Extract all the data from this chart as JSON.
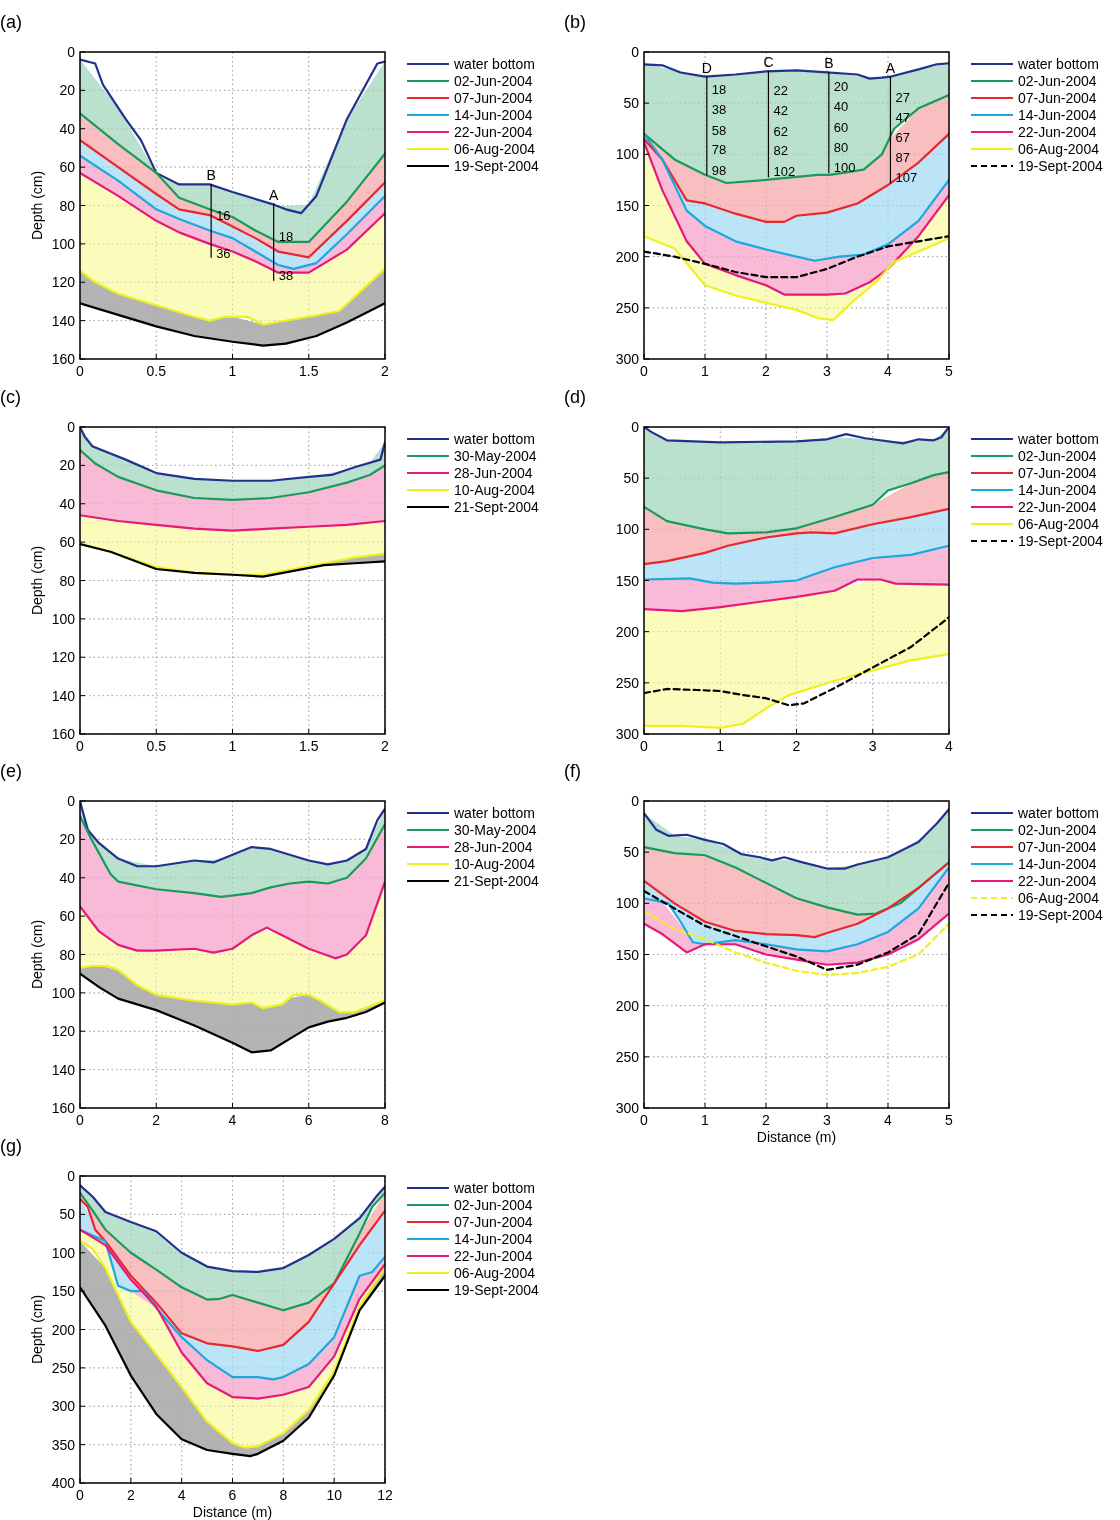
{
  "chart_data": [
    {
      "type": "line",
      "title": "(a)",
      "ylabel": "Depth (cm)",
      "xlim": [
        0,
        2
      ],
      "ylim": [
        160,
        0
      ],
      "xticks": [
        0,
        0.5,
        1,
        1.5,
        2
      ],
      "yticks": [
        0,
        20,
        40,
        60,
        80,
        100,
        120,
        140,
        160
      ],
      "grid": true,
      "legend": "right",
      "series": [
        {
          "name": "water bottom",
          "color": "#23308f",
          "type": "line",
          "x": [
            0,
            0.1,
            0.15,
            0.3,
            0.4,
            0.5,
            0.65,
            0.85,
            1,
            1.25,
            1.35,
            1.45,
            1.55,
            1.75,
            1.95,
            2
          ],
          "values": [
            4,
            6,
            17,
            35,
            46,
            63,
            69,
            69,
            73,
            79,
            82,
            84,
            75,
            35,
            6,
            5
          ]
        },
        {
          "name": "02-Jun-2004",
          "color": "#1a9a5a",
          "type": "area",
          "x": [
            0,
            0.25,
            0.5,
            0.65,
            0.85,
            1,
            1.15,
            1.3,
            1.5,
            1.75,
            2
          ],
          "values": [
            32,
            48,
            63,
            76,
            82,
            86,
            93,
            99,
            99,
            78,
            53
          ]
        },
        {
          "name": "07-Jun-2004",
          "color": "#e8262d",
          "type": "area",
          "x": [
            0,
            0.25,
            0.5,
            0.65,
            0.85,
            1,
            1.15,
            1.3,
            1.5,
            1.75,
            2
          ],
          "values": [
            46,
            60,
            74,
            82,
            85,
            91,
            97,
            104,
            107,
            88,
            68
          ]
        },
        {
          "name": "14-Jun-2004",
          "color": "#1ca7e0",
          "type": "area",
          "x": [
            0,
            0.25,
            0.5,
            0.65,
            0.85,
            1,
            1.15,
            1.3,
            1.4,
            1.55,
            1.75,
            2
          ],
          "values": [
            54,
            67,
            82,
            87,
            93,
            97,
            104,
            111,
            113,
            110,
            95,
            75
          ]
        },
        {
          "name": "22-Jun-2004",
          "color": "#e6197a",
          "type": "area",
          "x": [
            0,
            0.25,
            0.5,
            0.65,
            0.85,
            1,
            1.15,
            1.3,
            1.5,
            1.75,
            2
          ],
          "values": [
            63,
            75,
            88,
            94,
            100,
            104,
            109,
            115,
            115,
            103,
            84
          ]
        },
        {
          "name": "06-Aug-2004",
          "color": "#f0f020",
          "type": "area",
          "x": [
            0,
            0.1,
            0.25,
            0.5,
            0.75,
            0.85,
            0.95,
            1.1,
            1.2,
            1.5,
            1.7,
            1.85,
            2
          ],
          "values": [
            114,
            120,
            126,
            132,
            138,
            140,
            138,
            138,
            142,
            138,
            135,
            124,
            113
          ]
        },
        {
          "name": "19-Sept-2004",
          "color": "#000000",
          "type": "area",
          "x": [
            0,
            0.25,
            0.5,
            0.75,
            1,
            1.2,
            1.35,
            1.55,
            1.75,
            2
          ],
          "values": [
            131,
            137,
            143,
            148,
            151,
            153,
            152,
            148,
            141,
            131
          ]
        },
        {
          "color": "#000000",
          "type": "line",
          "x": [
            0.86,
            0.86
          ],
          "values": [
            69,
            107
          ]
        },
        {
          "color": "#000000",
          "type": "line",
          "x": [
            1.27,
            1.27
          ],
          "values": [
            79,
            119
          ]
        }
      ],
      "annotations": [
        {
          "text": "B",
          "x": 0.86,
          "y": 69
        },
        {
          "text": "A",
          "x": 1.27,
          "y": 79
        },
        {
          "text": "16",
          "x": 0.86,
          "y": 85
        },
        {
          "text": "36",
          "x": 0.86,
          "y": 105
        },
        {
          "text": "18",
          "x": 1.27,
          "y": 96
        },
        {
          "text": "38",
          "x": 1.27,
          "y": 116
        }
      ]
    },
    {
      "type": "line",
      "title": "(b)",
      "xlim": [
        0,
        5
      ],
      "ylim": [
        300,
        0
      ],
      "xticks": [
        0,
        1,
        2,
        3,
        4,
        5
      ],
      "yticks": [
        0,
        50,
        100,
        150,
        200,
        250,
        300
      ],
      "grid": true,
      "legend": "right",
      "series": [
        {
          "name": "water bottom",
          "color": "#23308f",
          "type": "line",
          "x": [
            0,
            0.3,
            0.6,
            1,
            1.5,
            2,
            2.5,
            3,
            3.5,
            3.7,
            3.9,
            4.05,
            4.5,
            4.8,
            5
          ],
          "values": [
            12,
            13,
            20,
            24,
            22,
            19,
            18,
            20,
            22,
            26,
            25,
            24,
            17,
            12,
            11
          ]
        },
        {
          "name": "02-Jun-2004",
          "color": "#1a9a5a",
          "type": "area",
          "x": [
            0,
            0.5,
            1,
            1.35,
            2,
            2.5,
            2.85,
            3.05,
            3.6,
            3.9,
            4.1,
            4.5,
            5
          ],
          "values": [
            80,
            105,
            120,
            128,
            125,
            122,
            120,
            120,
            115,
            100,
            75,
            55,
            42
          ]
        },
        {
          "name": "07-Jun-2004",
          "color": "#e8262d",
          "type": "area",
          "x": [
            0,
            0.3,
            0.7,
            1,
            1.5,
            2,
            2.3,
            2.5,
            3,
            3.5,
            4,
            4.5,
            5
          ],
          "values": [
            85,
            105,
            145,
            148,
            158,
            166,
            166,
            160,
            157,
            148,
            130,
            108,
            80
          ]
        },
        {
          "name": "14-Jun-2004",
          "color": "#1ca7e0",
          "type": "area",
          "x": [
            0,
            0.3,
            0.7,
            1,
            1.5,
            2,
            2.5,
            2.8,
            3.2,
            3.6,
            4,
            4.5,
            5
          ],
          "values": [
            80,
            105,
            155,
            170,
            185,
            193,
            200,
            204,
            200,
            198,
            188,
            165,
            125
          ]
        },
        {
          "name": "22-Jun-2004",
          "color": "#e6197a",
          "type": "area",
          "x": [
            0,
            0.3,
            0.7,
            1,
            1.5,
            2,
            2.3,
            3,
            3.3,
            3.7,
            4,
            4.5,
            5
          ],
          "values": [
            88,
            135,
            185,
            207,
            218,
            228,
            237,
            237,
            236,
            225,
            212,
            180,
            140
          ]
        },
        {
          "name": "06-Aug-2004",
          "color": "#f0f020",
          "type": "area",
          "x": [
            0,
            0.5,
            1,
            1.5,
            2,
            2.5,
            2.85,
            3.1,
            3.4,
            3.8,
            4.1,
            4.5,
            5
          ],
          "values": [
            180,
            192,
            228,
            238,
            245,
            252,
            260,
            262,
            245,
            225,
            205,
            195,
            182
          ]
        },
        {
          "name": "19-Sept-2004",
          "color": "#000000",
          "type": "line",
          "line_style": "dashed",
          "x": [
            0,
            0.5,
            1,
            1.5,
            2,
            2.5,
            3,
            3.5,
            4,
            4.5,
            5
          ],
          "values": [
            195,
            200,
            207,
            215,
            220,
            220,
            212,
            200,
            190,
            185,
            180
          ]
        },
        {
          "color": "#000000",
          "type": "line",
          "x": [
            1.03,
            1.03
          ],
          "values": [
            24,
            120
          ]
        },
        {
          "color": "#000000",
          "type": "line",
          "x": [
            2.04,
            2.04
          ],
          "values": [
            19,
            122
          ]
        },
        {
          "color": "#000000",
          "type": "line",
          "x": [
            3.03,
            3.03
          ],
          "values": [
            20,
            118
          ]
        },
        {
          "color": "#000000",
          "type": "line",
          "x": [
            4.04,
            4.04
          ],
          "values": [
            24,
            128
          ]
        }
      ],
      "annotations": [
        {
          "text": "D",
          "x": 1.03,
          "y": 24
        },
        {
          "text": "C",
          "x": 2.04,
          "y": 19
        },
        {
          "text": "B",
          "x": 3.03,
          "y": 20
        },
        {
          "text": "A",
          "x": 4.04,
          "y": 24
        },
        {
          "text": "18",
          "x": 1.03,
          "y": 36
        },
        {
          "text": "38",
          "x": 1.03,
          "y": 56
        },
        {
          "text": "58",
          "x": 1.03,
          "y": 76
        },
        {
          "text": "78",
          "x": 1.03,
          "y": 95
        },
        {
          "text": "98",
          "x": 1.03,
          "y": 115
        },
        {
          "text": "22",
          "x": 2.04,
          "y": 37
        },
        {
          "text": "42",
          "x": 2.04,
          "y": 57
        },
        {
          "text": "62",
          "x": 2.04,
          "y": 77
        },
        {
          "text": "82",
          "x": 2.04,
          "y": 96
        },
        {
          "text": "102",
          "x": 2.04,
          "y": 116
        },
        {
          "text": "20",
          "x": 3.03,
          "y": 33
        },
        {
          "text": "40",
          "x": 3.03,
          "y": 53
        },
        {
          "text": "60",
          "x": 3.03,
          "y": 73
        },
        {
          "text": "80",
          "x": 3.03,
          "y": 93
        },
        {
          "text": "100",
          "x": 3.03,
          "y": 112
        },
        {
          "text": "27",
          "x": 4.04,
          "y": 44
        },
        {
          "text": "47",
          "x": 4.04,
          "y": 64
        },
        {
          "text": "67",
          "x": 4.04,
          "y": 83
        },
        {
          "text": "87",
          "x": 4.04,
          "y": 103
        },
        {
          "text": "107",
          "x": 4.04,
          "y": 122
        }
      ]
    },
    {
      "type": "line",
      "title": "(c)",
      "ylabel": "Depth (cm)",
      "xlim": [
        0,
        2
      ],
      "ylim": [
        160,
        0
      ],
      "xticks": [
        0,
        0.5,
        1,
        1.5,
        2
      ],
      "yticks": [
        0,
        20,
        40,
        60,
        80,
        100,
        120,
        140,
        160
      ],
      "grid": true,
      "legend": "right",
      "series": [
        {
          "name": "water bottom",
          "color": "#23308f",
          "type": "line",
          "x": [
            0,
            0.03,
            0.08,
            0.3,
            0.5,
            0.75,
            1,
            1.25,
            1.5,
            1.65,
            1.8,
            1.97,
            2
          ],
          "values": [
            0,
            5,
            10,
            17,
            24,
            27,
            28,
            28,
            26,
            25,
            21,
            17,
            8
          ]
        },
        {
          "name": "30-May-2004",
          "color": "#1a9a5a",
          "type": "area",
          "x": [
            0,
            0.1,
            0.25,
            0.5,
            0.75,
            1,
            1.25,
            1.5,
            1.75,
            1.9,
            2
          ],
          "values": [
            12,
            19,
            26,
            33,
            37,
            38,
            37,
            34,
            29,
            25,
            20
          ]
        },
        {
          "name": "28-Jun-2004",
          "color": "#e6197a",
          "type": "area",
          "x": [
            0,
            0.25,
            0.5,
            0.75,
            1,
            1.25,
            1.5,
            1.75,
            2
          ],
          "values": [
            46,
            49,
            51,
            53,
            54,
            53,
            52,
            51,
            49
          ]
        },
        {
          "name": "10-Aug-2004",
          "color": "#f0f020",
          "type": "area",
          "x": [
            0,
            0.2,
            0.5,
            0.75,
            1,
            1.2,
            1.4,
            1.6,
            1.8,
            2
          ],
          "values": [
            61,
            65,
            73,
            76,
            77,
            77,
            74,
            71,
            68,
            66
          ]
        },
        {
          "name": "21-Sept-2004",
          "color": "#000000",
          "type": "area",
          "x": [
            0,
            0.2,
            0.5,
            0.75,
            1,
            1.2,
            1.4,
            1.6,
            1.8,
            2
          ],
          "values": [
            61,
            65,
            74,
            76,
            77,
            78,
            75,
            72,
            71,
            70
          ]
        }
      ]
    },
    {
      "type": "line",
      "title": "(d)",
      "xlim": [
        0,
        4
      ],
      "ylim": [
        300,
        0
      ],
      "xticks": [
        0,
        1,
        2,
        3,
        4
      ],
      "yticks": [
        0,
        50,
        100,
        150,
        200,
        250,
        300
      ],
      "grid": true,
      "legend": "right",
      "series": [
        {
          "name": "water bottom",
          "color": "#23308f",
          "type": "line",
          "x": [
            0,
            0.1,
            0.3,
            1,
            2,
            2.4,
            2.65,
            2.9,
            3.4,
            3.6,
            3.8,
            3.9,
            4
          ],
          "values": [
            0,
            5,
            13,
            15,
            14,
            12,
            7,
            11,
            16,
            12,
            13,
            10,
            0
          ]
        },
        {
          "name": "02-Jun-2004",
          "color": "#1a9a5a",
          "type": "area",
          "x": [
            0,
            0.3,
            0.8,
            1.1,
            1.6,
            2,
            2.5,
            3,
            3.2,
            3.5,
            3.8,
            4
          ],
          "values": [
            78,
            92,
            100,
            104,
            103,
            99,
            88,
            76,
            62,
            55,
            47,
            44
          ]
        },
        {
          "name": "07-Jun-2004",
          "color": "#e8262d",
          "type": "area",
          "x": [
            0,
            0.3,
            0.8,
            1.1,
            1.6,
            2,
            2.2,
            2.5,
            3,
            3.5,
            4
          ],
          "values": [
            134,
            131,
            123,
            116,
            108,
            104,
            103,
            104,
            95,
            88,
            80
          ]
        },
        {
          "name": "14-Jun-2004",
          "color": "#1ca7e0",
          "type": "area",
          "x": [
            0,
            0.6,
            0.9,
            1.2,
            1.6,
            2,
            2.5,
            3,
            3.5,
            4
          ],
          "values": [
            149,
            148,
            152,
            153,
            152,
            150,
            137,
            128,
            125,
            116
          ]
        },
        {
          "name": "22-Jun-2004",
          "color": "#e6197a",
          "type": "area",
          "x": [
            0,
            0.5,
            1,
            1.5,
            2,
            2.5,
            2.8,
            3.1,
            3.3,
            4
          ],
          "values": [
            178,
            180,
            176,
            171,
            166,
            160,
            149,
            149,
            153,
            154
          ]
        },
        {
          "name": "06-Aug-2004",
          "color": "#f0f020",
          "type": "area",
          "x": [
            0,
            0.5,
            1,
            1.3,
            1.6,
            1.9,
            2.5,
            3,
            3.5,
            4
          ],
          "values": [
            292,
            292,
            294,
            290,
            275,
            262,
            248,
            238,
            228,
            222
          ]
        },
        {
          "name": "19-Sept-2004",
          "color": "#000000",
          "type": "line",
          "line_style": "dashed",
          "x": [
            0,
            0.3,
            0.7,
            1,
            1.3,
            1.6,
            1.9,
            2.1,
            2.5,
            3,
            3.5,
            4
          ],
          "values": [
            260,
            256,
            257,
            258,
            262,
            265,
            272,
            270,
            255,
            235,
            215,
            186
          ]
        }
      ]
    },
    {
      "type": "line",
      "title": "(e)",
      "ylabel": "Depth (cm)",
      "xlim": [
        0,
        8
      ],
      "ylim": [
        160,
        0
      ],
      "xticks": [
        0,
        2,
        4,
        6,
        8
      ],
      "yticks": [
        0,
        20,
        40,
        60,
        80,
        100,
        120,
        140,
        160
      ],
      "grid": true,
      "legend": "right",
      "series": [
        {
          "name": "water bottom",
          "color": "#23308f",
          "type": "line",
          "x": [
            0,
            0.2,
            0.5,
            1,
            1.5,
            2,
            3,
            3.5,
            4,
            4.5,
            5,
            5.5,
            6,
            6.5,
            7,
            7.5,
            7.8,
            8
          ],
          "values": [
            0,
            15,
            22,
            30,
            34,
            34,
            31,
            32,
            28,
            24,
            25,
            28,
            31,
            33,
            31,
            25,
            10,
            4
          ]
        },
        {
          "name": "30-May-2004",
          "color": "#1a9a5a",
          "type": "area",
          "x": [
            0,
            0.3,
            0.8,
            1,
            2,
            3,
            3.7,
            4.5,
            5,
            5.5,
            6,
            6.5,
            7,
            7.5,
            8
          ],
          "values": [
            8,
            20,
            38,
            42,
            46,
            48,
            50,
            48,
            45,
            43,
            42,
            43,
            40,
            30,
            12
          ]
        },
        {
          "name": "28-Jun-2004",
          "color": "#e6197a",
          "type": "area",
          "x": [
            0,
            0.5,
            1,
            1.5,
            2,
            3,
            3.5,
            4,
            4.5,
            4.9,
            5.3,
            6,
            6.7,
            7,
            7.5,
            8
          ],
          "values": [
            55,
            68,
            75,
            78,
            78,
            77,
            79,
            77,
            70,
            66,
            70,
            77,
            82,
            80,
            70,
            42
          ]
        },
        {
          "name": "10-Aug-2004",
          "color": "#f0f020",
          "type": "area",
          "x": [
            0,
            0.3,
            0.7,
            1,
            1.5,
            2,
            3,
            4,
            4.5,
            4.8,
            5.3,
            5.6,
            6,
            6.3,
            6.8,
            7.2,
            7.6,
            8
          ],
          "values": [
            87,
            86,
            86,
            88,
            96,
            101,
            104,
            106,
            105,
            108,
            106,
            101,
            101,
            104,
            110,
            110,
            107,
            104
          ]
        },
        {
          "name": "21-Sept-2004",
          "color": "#000000",
          "type": "area",
          "x": [
            0,
            0.5,
            1,
            2,
            3,
            4,
            4.5,
            5,
            5.5,
            6,
            6.5,
            7,
            7.5,
            8
          ],
          "values": [
            90,
            97,
            103,
            109,
            117,
            126,
            131,
            130,
            124,
            118,
            115,
            113,
            110,
            105
          ]
        }
      ]
    },
    {
      "type": "line",
      "title": "(f)",
      "xlabel": "Distance (m)",
      "xlim": [
        0,
        5
      ],
      "ylim": [
        300,
        0
      ],
      "xticks": [
        0,
        1,
        2,
        3,
        4,
        5
      ],
      "yticks": [
        0,
        50,
        100,
        150,
        200,
        250,
        300
      ],
      "grid": true,
      "legend": "right",
      "series": [
        {
          "name": "water bottom",
          "color": "#23308f",
          "type": "line",
          "x": [
            0,
            0.2,
            0.4,
            0.7,
            1,
            1.3,
            1.6,
            1.9,
            2.1,
            2.3,
            2.6,
            3,
            3.3,
            3.5,
            4,
            4.5,
            4.8,
            5
          ],
          "values": [
            12,
            28,
            34,
            33,
            38,
            42,
            52,
            55,
            58,
            55,
            60,
            66,
            66,
            62,
            55,
            40,
            22,
            8
          ]
        },
        {
          "name": "02-Jun-2004",
          "color": "#1a9a5a",
          "type": "area",
          "x": [
            0,
            0.5,
            1,
            1.5,
            2,
            2.5,
            3,
            3.5,
            3.8,
            4.2,
            4.6,
            5
          ],
          "values": [
            45,
            51,
            53,
            65,
            80,
            95,
            104,
            111,
            110,
            100,
            80,
            60
          ]
        },
        {
          "name": "07-Jun-2004",
          "color": "#e8262d",
          "type": "area",
          "x": [
            0,
            0.5,
            1,
            1.5,
            2,
            2.5,
            2.8,
            3,
            3.5,
            4,
            4.5,
            5
          ],
          "values": [
            78,
            100,
            118,
            127,
            130,
            131,
            133,
            129,
            120,
            105,
            85,
            60
          ]
        },
        {
          "name": "14-Jun-2004",
          "color": "#1ca7e0",
          "type": "area",
          "x": [
            0,
            0.4,
            0.6,
            0.8,
            1,
            1.5,
            2,
            2.5,
            3,
            3.5,
            4,
            4.5,
            5
          ],
          "values": [
            95,
            100,
            118,
            138,
            140,
            136,
            140,
            145,
            147,
            140,
            128,
            105,
            65
          ]
        },
        {
          "name": "22-Jun-2004",
          "color": "#e6197a",
          "type": "area",
          "x": [
            0,
            0.3,
            0.7,
            1,
            1.5,
            2,
            2.5,
            3,
            3.5,
            4,
            4.5,
            5
          ],
          "values": [
            120,
            130,
            148,
            140,
            140,
            150,
            155,
            160,
            158,
            150,
            135,
            110
          ]
        },
        {
          "name": "06-Aug-2004",
          "color": "#f0f020",
          "type": "line",
          "line_style": "dashed",
          "x": [
            0,
            0.5,
            1,
            1.5,
            2,
            2.5,
            3,
            3.5,
            4,
            4.5,
            5
          ],
          "values": [
            108,
            125,
            135,
            148,
            158,
            166,
            170,
            168,
            162,
            150,
            120
          ]
        },
        {
          "name": "19-Sept-2004",
          "color": "#000000",
          "type": "line",
          "line_style": "dashed",
          "x": [
            0,
            0.5,
            1,
            1.5,
            2,
            2.5,
            3,
            3.5,
            4,
            4.5,
            5
          ],
          "values": [
            88,
            105,
            122,
            132,
            142,
            152,
            165,
            160,
            148,
            130,
            80
          ]
        }
      ]
    },
    {
      "type": "line",
      "title": "(g)",
      "xlabel": "Distance (m)",
      "ylabel": "Depth (cm)",
      "xlim": [
        0,
        12
      ],
      "ylim": [
        400,
        0
      ],
      "xticks": [
        0,
        2,
        4,
        6,
        8,
        10,
        12
      ],
      "yticks": [
        0,
        50,
        100,
        150,
        200,
        250,
        300,
        350,
        400
      ],
      "grid": true,
      "legend": "right",
      "series": [
        {
          "name": "water bottom",
          "color": "#23308f",
          "type": "line",
          "x": [
            0,
            0.5,
            1,
            2,
            3,
            4,
            5,
            6,
            7,
            8,
            9,
            10,
            11,
            11.7,
            12
          ],
          "values": [
            12,
            27,
            47,
            60,
            72,
            100,
            118,
            124,
            125,
            120,
            103,
            82,
            55,
            25,
            14
          ]
        },
        {
          "name": "02-Jun-2004",
          "color": "#1a9a5a",
          "type": "area",
          "x": [
            0,
            0.5,
            1,
            2,
            3,
            4,
            5,
            5.5,
            6,
            7,
            8,
            9,
            10,
            11,
            11.5,
            12
          ],
          "values": [
            22,
            45,
            70,
            100,
            122,
            145,
            161,
            160,
            155,
            165,
            175,
            165,
            140,
            75,
            40,
            22
          ]
        },
        {
          "name": "07-Jun-2004",
          "color": "#e8262d",
          "type": "area",
          "x": [
            0,
            0.3,
            0.6,
            1,
            2,
            3,
            4,
            5,
            6,
            7,
            8,
            9,
            10,
            11,
            12
          ],
          "values": [
            30,
            40,
            70,
            85,
            130,
            165,
            205,
            218,
            222,
            228,
            220,
            190,
            140,
            90,
            45
          ]
        },
        {
          "name": "14-Jun-2004",
          "color": "#1ca7e0",
          "type": "area",
          "x": [
            0,
            1,
            1.5,
            2,
            2.5,
            3,
            4,
            5,
            6,
            7,
            7.6,
            8,
            9,
            10,
            11,
            11.5,
            12
          ],
          "values": [
            70,
            85,
            143,
            150,
            150,
            172,
            210,
            240,
            262,
            262,
            265,
            262,
            245,
            210,
            130,
            125,
            105
          ]
        },
        {
          "name": "22-Jun-2004",
          "color": "#e6197a",
          "type": "area",
          "x": [
            0,
            0.5,
            1,
            2,
            3,
            4,
            5,
            6,
            7,
            8,
            9,
            10,
            11,
            12
          ],
          "values": [
            70,
            80,
            90,
            135,
            170,
            230,
            270,
            288,
            290,
            285,
            275,
            235,
            160,
            115
          ]
        },
        {
          "name": "06-Aug-2004",
          "color": "#f0f020",
          "type": "area",
          "x": [
            0,
            0.5,
            1,
            2,
            3,
            4,
            5,
            6,
            6.5,
            7,
            8,
            9,
            10,
            11,
            12
          ],
          "values": [
            85,
            95,
            120,
            190,
            232,
            275,
            320,
            348,
            354,
            352,
            335,
            305,
            255,
            170,
            120
          ]
        },
        {
          "name": "19-Sept-2004",
          "color": "#000000",
          "type": "area",
          "x": [
            0,
            1,
            2,
            3,
            4,
            5,
            6,
            6.7,
            7,
            8,
            9,
            10,
            11,
            12
          ],
          "values": [
            145,
            195,
            260,
            310,
            343,
            357,
            362,
            365,
            362,
            345,
            315,
            260,
            175,
            130
          ]
        }
      ]
    }
  ]
}
